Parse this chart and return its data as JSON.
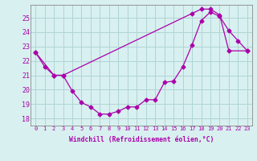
{
  "line1_x": [
    0,
    1,
    2,
    3,
    4,
    5,
    6,
    7,
    8,
    9,
    10,
    11,
    12,
    13,
    14,
    15,
    16,
    17,
    18,
    19,
    20,
    21,
    22,
    23
  ],
  "line1_y": [
    22.6,
    21.6,
    21.0,
    21.0,
    19.9,
    19.1,
    18.8,
    18.3,
    18.3,
    18.5,
    18.8,
    18.8,
    19.3,
    19.3,
    20.5,
    20.6,
    21.6,
    23.1,
    24.8,
    25.4,
    25.1,
    24.1,
    23.4,
    22.7
  ],
  "line2_x": [
    0,
    2,
    3,
    17,
    18,
    19,
    20,
    21,
    23
  ],
  "line2_y": [
    22.6,
    21.0,
    21.0,
    25.3,
    25.6,
    25.6,
    25.2,
    22.7,
    22.7
  ],
  "line_color": "#aa00aa",
  "marker": "D",
  "markersize": 2.5,
  "linewidth": 0.9,
  "bg_color": "#d8f0f0",
  "grid_color": "#b0d4d4",
  "xlabel": "Windchill (Refroidissement éolien,°C)",
  "xlim": [
    -0.5,
    23.5
  ],
  "ylim": [
    17.5,
    25.9
  ],
  "yticks": [
    18,
    19,
    20,
    21,
    22,
    23,
    24,
    25
  ],
  "xtick_labels": [
    "0",
    "1",
    "2",
    "3",
    "4",
    "5",
    "6",
    "7",
    "8",
    "9",
    "10",
    "11",
    "12",
    "13",
    "14",
    "15",
    "16",
    "17",
    "18",
    "19",
    "20",
    "21",
    "22",
    "23"
  ]
}
